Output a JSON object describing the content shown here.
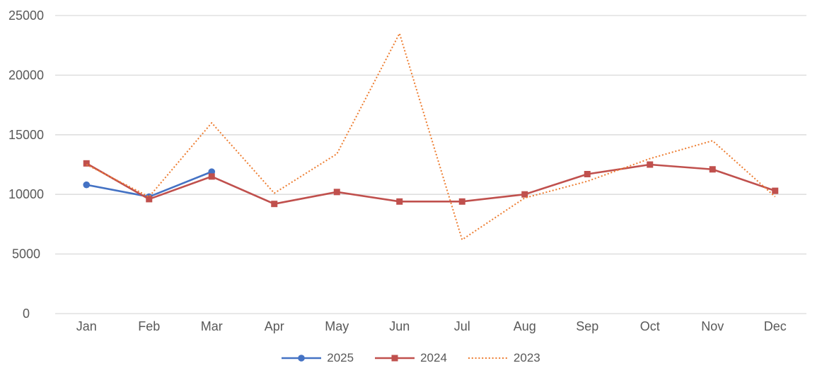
{
  "chart_data": {
    "type": "line",
    "title": "",
    "categories": [
      "Jan",
      "Feb",
      "Mar",
      "Apr",
      "May",
      "Jun",
      "Jul",
      "Aug",
      "Sep",
      "Oct",
      "Nov",
      "Dec"
    ],
    "series": [
      {
        "name": "2025",
        "color": "#4472C4",
        "marker": "circle",
        "line_style": "solid",
        "values": [
          10800,
          9800,
          11900,
          null,
          null,
          null,
          null,
          null,
          null,
          null,
          null,
          null
        ]
      },
      {
        "name": "2024",
        "color": "#C0504D",
        "marker": "square",
        "line_style": "solid",
        "values": [
          12600,
          9600,
          11500,
          9200,
          10200,
          9400,
          9400,
          10000,
          11700,
          12500,
          12100,
          10300
        ]
      },
      {
        "name": "2023",
        "color": "#ED7D31",
        "marker": "none",
        "line_style": "dotted",
        "values": [
          12500,
          9800,
          16000,
          10100,
          13400,
          23500,
          6200,
          9700,
          11100,
          13000,
          14500,
          9800
        ]
      }
    ],
    "y_axis": {
      "min": 0,
      "max": 25000,
      "step": 5000,
      "tick_labels": [
        "0",
        "5000",
        "10000",
        "15000",
        "20000",
        "25000"
      ]
    },
    "xlabel": "",
    "ylabel": "",
    "grid": true,
    "legend_position": "bottom"
  },
  "colors": {
    "background": "#FFFFFF",
    "gridline": "#D9D9D9",
    "axis_text": "#595959"
  }
}
